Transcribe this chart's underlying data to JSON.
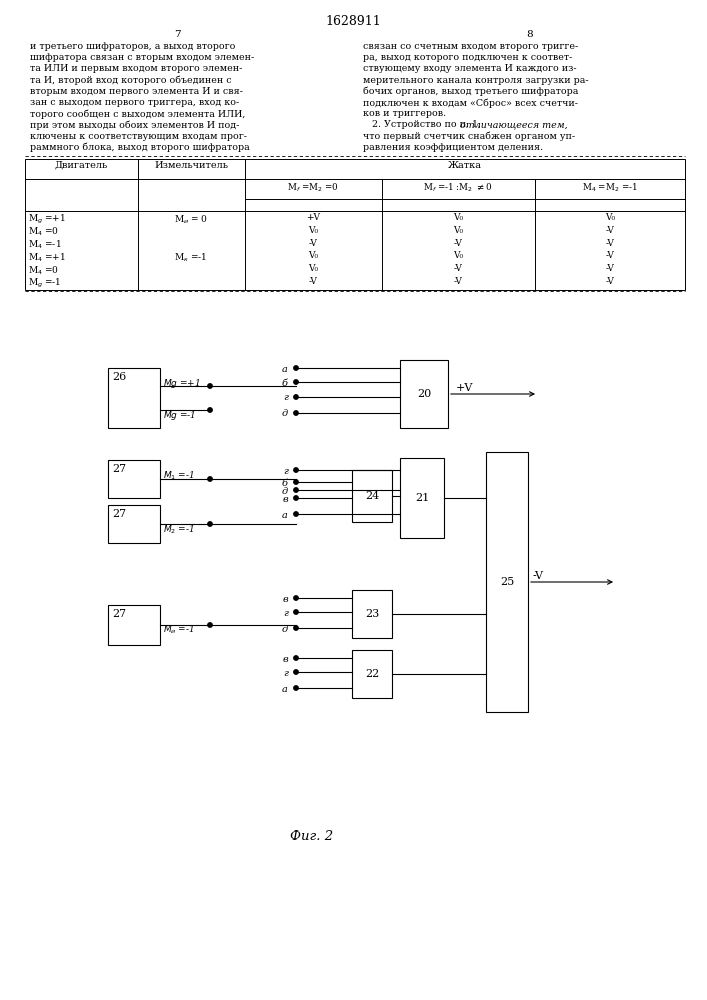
{
  "title": "1628911",
  "left_text": [
    "и третьего шифраторов, а выход второго",
    "шифратора связан с вторым входом элемен-",
    "та ИЛИ и первым входом второго элемен-",
    "та И, второй вход которого объединен с",
    "вторым входом первого элемента И и свя-",
    "зан с выходом первого триггера, вход ко-",
    "торого сообщен с выходом элемента ИЛИ,",
    "при этом выходы обоих элементов И под-",
    "ключены к соответствующим входам прог-",
    "раммного блока, выход второго шифратора"
  ],
  "right_text": [
    "связан со счетным входом второго тригге-",
    "ра, выход которого подключен к соответ-",
    "ствующему входу элемента И каждого из-",
    "мерительного канала контроля загрузки ра-",
    "бочих органов, выход третьего шифратора",
    "подключен к входам «Сброс» всех счетчи-",
    "ков и триггеров.",
    "   2. Устройство по п. 1, отличающееся тем,",
    "что первый счетчик снабжен органом уп-",
    "равления коэффициентом деления."
  ],
  "bg_color": "#ffffff",
  "text_color": "#000000"
}
